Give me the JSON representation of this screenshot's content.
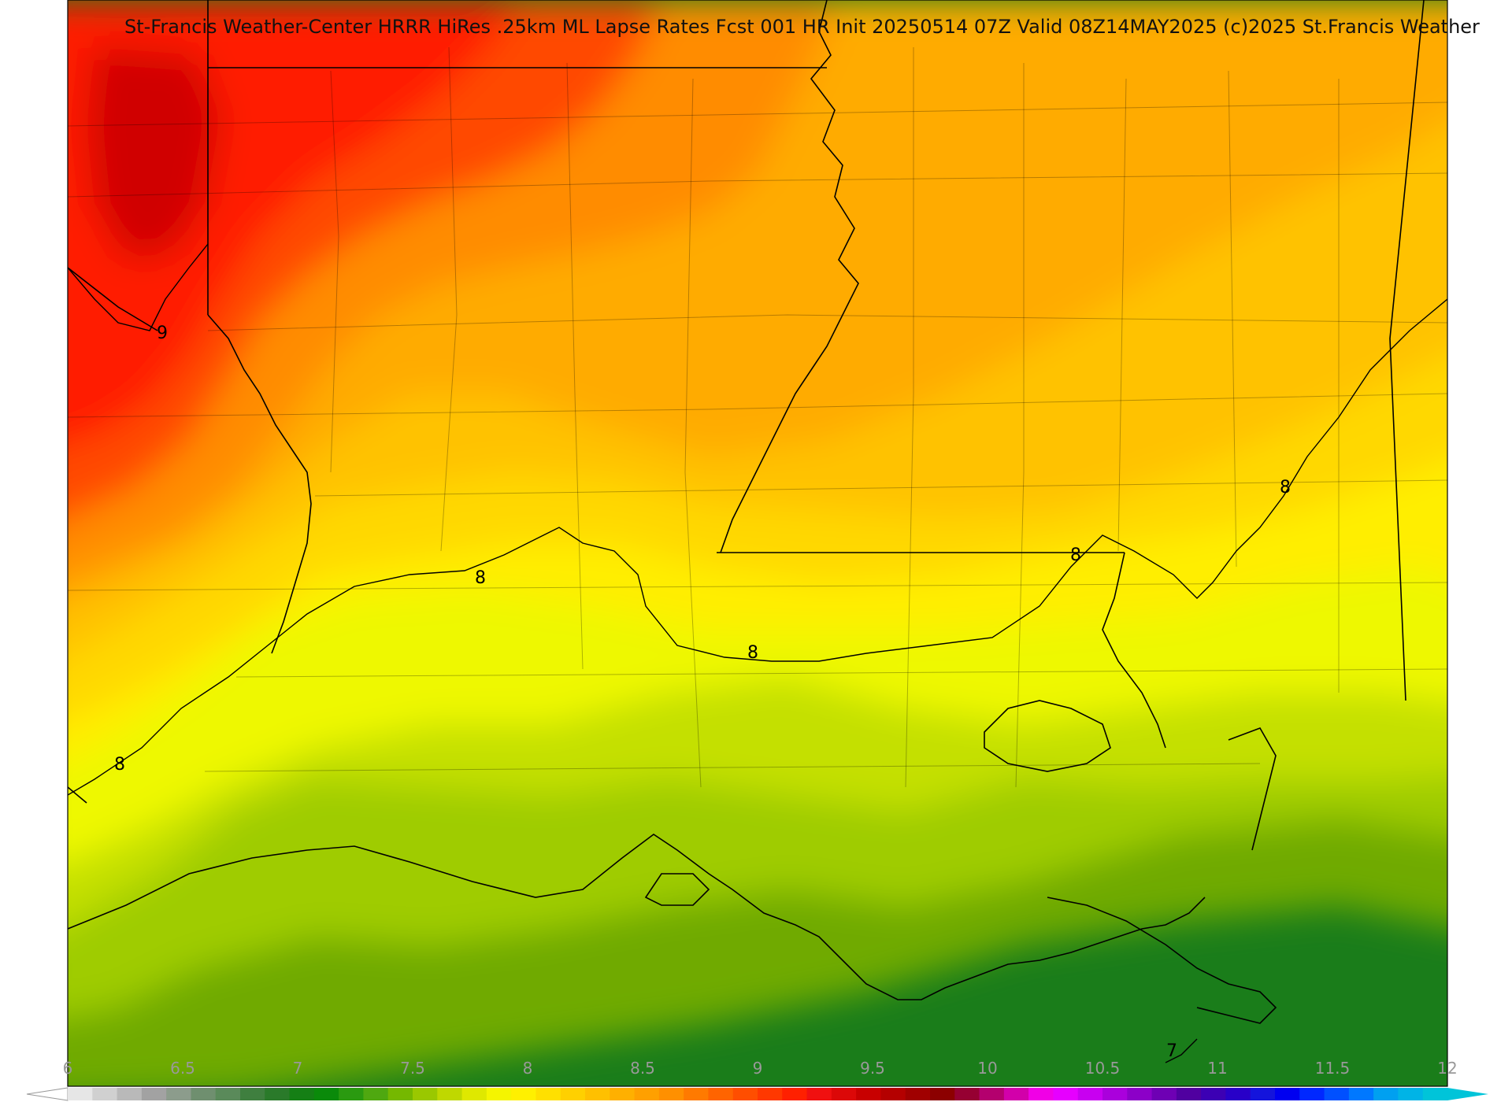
{
  "title": "St-Francis Weather-Center HRRR HiRes .25km ML Lapse Rates  Fcst 001 HR Init 20250514 07Z  Valid 08Z14MAY2025   (c)2025 St.Francis Weather",
  "contour_labels": [
    {
      "id": "contour-label-9-northwest",
      "text": "9"
    },
    {
      "id": "contour-label-8-west",
      "text": "8"
    },
    {
      "id": "contour-label-8-central-west",
      "text": "8"
    },
    {
      "id": "contour-label-8-central",
      "text": "8"
    },
    {
      "id": "contour-label-8-central-east",
      "text": "8"
    },
    {
      "id": "contour-label-8-east",
      "text": "8"
    },
    {
      "id": "contour-label-7-southeast",
      "text": "7"
    }
  ],
  "colorbar": {
    "min": 6,
    "max": 12,
    "ticks": [
      "6",
      "6.5",
      "7",
      "7.5",
      "8",
      "8.5",
      "9",
      "9.5",
      "10",
      "10.5",
      "11",
      "11.5",
      "12"
    ],
    "under_color": "#ffffff",
    "over_color": "#00c4d9",
    "colors": [
      "#e6e6e6",
      "#d0d0d0",
      "#b9b9b9",
      "#a2a2a2",
      "#8c9c8c",
      "#6f8f6f",
      "#5a8a5a",
      "#3f7f3f",
      "#2a7a2a",
      "#157f15",
      "#0a8a0a",
      "#2a9a10",
      "#4fa810",
      "#75b800",
      "#9ac800",
      "#bfd800",
      "#dfe800",
      "#f5f500",
      "#fff000",
      "#ffe000",
      "#ffd000",
      "#ffc000",
      "#ffb000",
      "#ffa000",
      "#ff9000",
      "#ff7a00",
      "#ff6400",
      "#ff4e00",
      "#ff3800",
      "#ff2000",
      "#f01010",
      "#dc0808",
      "#c80000",
      "#b40000",
      "#a00000",
      "#8c0000",
      "#960032",
      "#b4006e",
      "#d200aa",
      "#f000e6",
      "#e600ff",
      "#c800f0",
      "#aa00dc",
      "#8c00c8",
      "#6e00b4",
      "#5000a0",
      "#3c00b4",
      "#2800c8",
      "#1414dc",
      "#0000f0",
      "#0028ff",
      "#0050ff",
      "#0078ff",
      "#00a0f0",
      "#00b4e6",
      "#00c4d9"
    ]
  },
  "map": {
    "boundary_color": "#000000",
    "field_colors": {
      "deep_red": "#d00000",
      "red": "#ff1a00",
      "red_orange": "#ff4a00",
      "orange": "#ff8c00",
      "light_orange": "#ffab00",
      "amber": "#ffc200",
      "yellow_orange": "#ffd800",
      "yellow": "#ffee00",
      "lime_yellow": "#eef800",
      "yellow_green": "#c4e000",
      "light_green": "#9fcc00",
      "green": "#6faa00",
      "mid_green": "#3f9a10",
      "dark_green": "#1a7d1a"
    }
  }
}
